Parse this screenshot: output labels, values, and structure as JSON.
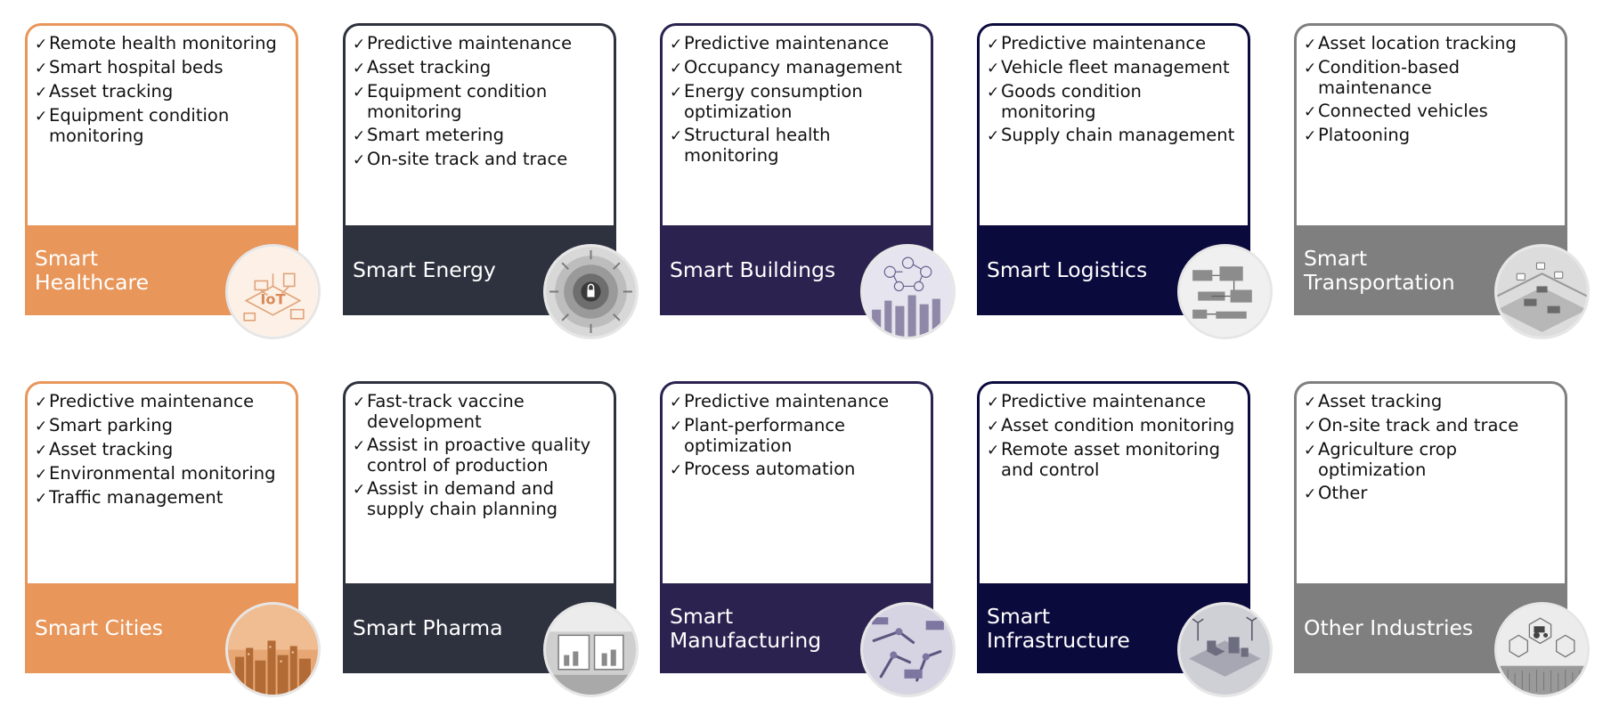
{
  "cards": [
    {
      "title": "Smart Healthcare",
      "title_lines": [
        "Smart",
        "Healthcare"
      ],
      "items": [
        "Remote health monitoring",
        "Smart hospital beds",
        "Asset tracking",
        "Equipment condition monitoring"
      ],
      "color": "#e8965a",
      "image_icon": "iot-healthcare-illustration-icon"
    },
    {
      "title": "Smart Energy",
      "title_lines": [
        "Smart Energy"
      ],
      "items": [
        "Predictive maintenance",
        "Asset tracking",
        "Equipment condition monitoring",
        "Smart metering",
        "On-site track and trace"
      ],
      "color": "#2e323e",
      "image_icon": "energy-lock-icon"
    },
    {
      "title": "Smart Buildings",
      "title_lines": [
        "Smart Buildings"
      ],
      "items": [
        "Predictive maintenance",
        "Occupancy management",
        "Energy consumption optimization",
        "Structural health monitoring"
      ],
      "color": "#2c2250",
      "image_icon": "smart-city-network-icon"
    },
    {
      "title": "Smart Logistics",
      "title_lines": [
        "Smart Logistics"
      ],
      "items": [
        "Predictive maintenance",
        "Vehicle fleet management",
        "Goods condition monitoring",
        "Supply chain management"
      ],
      "color": "#0b0a3d",
      "image_icon": "logistics-chain-icon"
    },
    {
      "title": "Smart Transportation",
      "title_lines": [
        "Smart",
        "Transportation"
      ],
      "items": [
        "Asset location tracking",
        "Condition-based maintenance",
        "Connected vehicles",
        "Platooning"
      ],
      "color": "#7f7f7f",
      "image_icon": "connected-vehicles-icon"
    },
    {
      "title": "Smart Cities",
      "title_lines": [
        "Smart Cities"
      ],
      "items": [
        "Predictive maintenance",
        "Smart parking",
        "Asset tracking",
        "Environmental monitoring",
        "Traffic management"
      ],
      "color": "#e8965a",
      "image_icon": "city-skyline-icon"
    },
    {
      "title": "Smart Pharma",
      "title_lines": [
        "Smart Pharma"
      ],
      "items": [
        "Fast-track vaccine development",
        "Assist in proactive quality control of production",
        "Assist in demand and supply chain planning"
      ],
      "color": "#2e323e",
      "image_icon": "pharma-lab-icon"
    },
    {
      "title": "Smart Manufacturing",
      "title_lines": [
        "Smart",
        "Manufacturing"
      ],
      "items": [
        "Predictive maintenance",
        "Plant-performance optimization",
        "Process automation"
      ],
      "color": "#2c2250",
      "image_icon": "factory-robotics-icon"
    },
    {
      "title": "Smart Infrastructure",
      "title_lines": [
        "Smart",
        "Infrastructure"
      ],
      "items": [
        "Predictive maintenance",
        "Asset condition monitoring",
        "Remote asset monitoring and control"
      ],
      "color": "#0b0a3d",
      "image_icon": "isometric-infrastructure-icon"
    },
    {
      "title": "Other Industries",
      "title_lines": [
        "Other Industries"
      ],
      "items": [
        "Asset tracking",
        "On-site track and trace",
        "Agriculture crop optimization",
        "Other"
      ],
      "color": "#7f7f7f",
      "image_icon": "agriculture-tractor-icon"
    }
  ],
  "check_glyph": "✓"
}
